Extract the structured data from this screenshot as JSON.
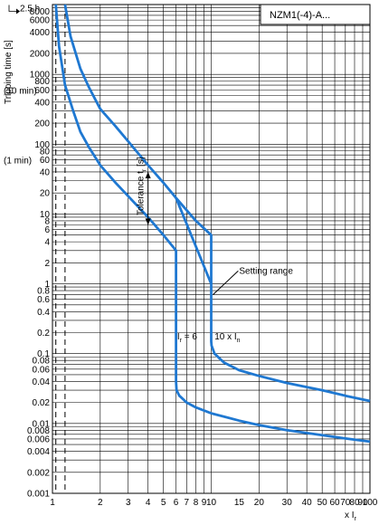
{
  "chart_data": {
    "type": "line",
    "title": "NZM1(-4)-A...",
    "ylabel": "Tripping time [s]",
    "xlabel": "x I",
    "xlabel_sub": "r",
    "xscale": "log",
    "yscale": "log",
    "xlim": [
      1,
      100
    ],
    "ylim": [
      0.001,
      10000
    ],
    "grid": true,
    "x_ticks": [
      1,
      2,
      3,
      4,
      5,
      6,
      7,
      8,
      9,
      10,
      15,
      20,
      30,
      40,
      50,
      60,
      70,
      80,
      90,
      100
    ],
    "x_tick_labels": [
      "1",
      "2",
      "3",
      "4",
      "5",
      "6",
      "7",
      "8",
      "9",
      "10",
      "15",
      "20",
      "30",
      "40",
      "50",
      "60",
      "70",
      "80",
      "90",
      "100"
    ],
    "y_ticks": [
      0.001,
      0.002,
      0.004,
      0.006,
      0.008,
      0.01,
      0.02,
      0.04,
      0.06,
      0.08,
      0.1,
      0.2,
      0.4,
      0.6,
      0.8,
      1,
      2,
      4,
      6,
      8,
      10,
      20,
      40,
      60,
      80,
      100,
      200,
      400,
      600,
      800,
      1000,
      2000,
      4000,
      6000,
      8000
    ],
    "y_tick_labels": [
      "0.001",
      "0.002",
      "0.004",
      "0.006",
      "0.008",
      "0.01",
      "0.02",
      "0.04",
      "0.06",
      "0.08",
      "0.1",
      "0.2",
      "0.4",
      "0.6",
      "0.8",
      "1",
      "2",
      "4",
      "6",
      "8",
      "10",
      "20",
      "40",
      "60",
      "80",
      "100",
      "200",
      "400",
      "600",
      "800",
      "1000",
      "2000",
      "4000",
      "6000",
      "8000"
    ],
    "y_extra_labels": [
      {
        "text": "2.5 h",
        "y": 9000
      },
      {
        "text": "(10 min)",
        "y": 600
      },
      {
        "text": "(1 min)",
        "y": 60
      }
    ],
    "reference_lines_x": [
      1.05,
      1.2
    ],
    "series": [
      {
        "x": [
          1.05,
          1.1,
          1.2,
          1.35,
          1.5,
          1.7,
          2,
          2.5,
          3,
          4,
          5,
          6,
          6,
          6.05,
          6.3,
          7,
          8,
          10,
          15,
          20,
          30,
          50,
          70,
          100
        ],
        "y": [
          10000,
          2500,
          700,
          300,
          150,
          90,
          50,
          28,
          18,
          9,
          5,
          3,
          0.04,
          0.03,
          0.025,
          0.02,
          0.017,
          0.014,
          0.011,
          0.0095,
          0.008,
          0.0068,
          0.0061,
          0.0055
        ]
      },
      {
        "x": [
          1.2,
          1.3,
          1.5,
          1.7,
          2,
          2.5,
          3,
          4,
          5,
          6,
          8,
          10,
          10,
          10.05,
          10.5,
          12,
          15,
          20,
          30,
          50,
          70,
          100
        ],
        "y": [
          10000,
          3500,
          1200,
          650,
          320,
          180,
          110,
          50,
          28,
          17,
          8,
          5,
          0.15,
          0.13,
          0.1,
          0.075,
          0.058,
          0.048,
          0.038,
          0.03,
          0.025,
          0.021
        ]
      },
      {
        "x": [
          6,
          10
        ],
        "y": [
          17,
          1
        ]
      }
    ],
    "annotations": [
      {
        "text": "Tolerance t",
        "sub": "r",
        "suffix": " [s]",
        "x": 3.75,
        "y": 25,
        "rotate": -90
      },
      {
        "text": "Setting range",
        "x": 15,
        "y": 1.4
      },
      {
        "text": "I",
        "sub": "r",
        "suffix": " = 6",
        "x": 6.1,
        "y": 0.16
      },
      {
        "text": "10 x I",
        "sub": "n",
        "suffix": "",
        "x": 10.5,
        "y": 0.16
      }
    ],
    "tolerance_arrow": {
      "x": 4,
      "y_top": 40,
      "y_bottom": 7
    },
    "leader_line": {
      "from": [
        14.8,
        1.4
      ],
      "to": [
        10,
        0.7
      ]
    }
  }
}
